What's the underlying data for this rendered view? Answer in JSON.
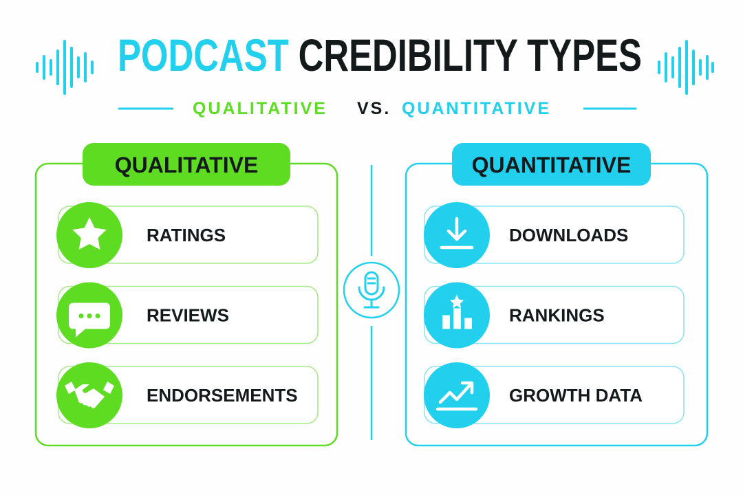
{
  "header": {
    "title_accent": "PODCAST",
    "title_main": "CREDIBILITY TYPES",
    "subtitle_left": "QUALITATIVE",
    "subtitle_vs": "VS.",
    "subtitle_right": "QUANTITATIVE"
  },
  "panels": [
    {
      "title": "QUALITATIVE",
      "items": [
        "RATINGS",
        "REVIEWS",
        "ENDORSEMENTS"
      ]
    },
    {
      "title": "QUANTITATIVE",
      "items": [
        "DOWNLOADS",
        "RANKINGS",
        "GROWTH DATA"
      ]
    }
  ]
}
